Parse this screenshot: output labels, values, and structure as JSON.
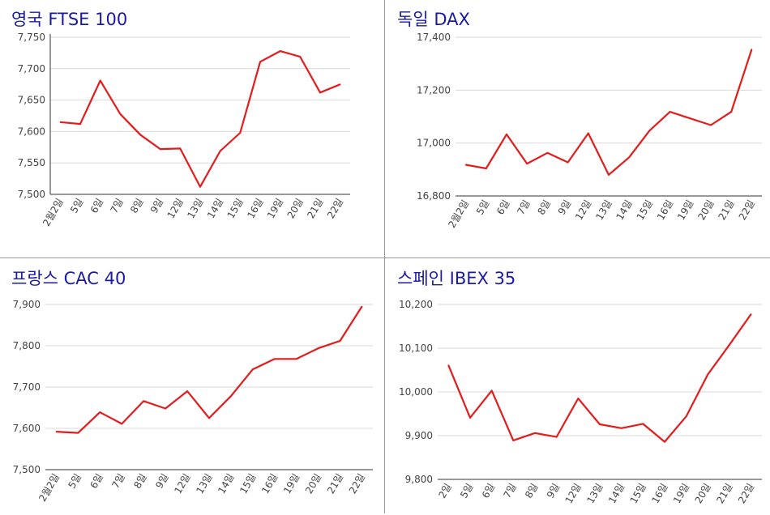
{
  "colors": {
    "line": "#e31c1c",
    "title": "#1a1aa6",
    "grid": "#d9d9d9",
    "axis": "#333333",
    "divider": "#9a9a9a"
  },
  "panels": [
    {
      "title": "영국 FTSE 100",
      "chart_data": {
        "type": "line",
        "categories": [
          "2월2일",
          "5일",
          "6일",
          "7일",
          "8일",
          "9일",
          "12일",
          "13일",
          "14일",
          "15일",
          "16일",
          "19일",
          "20일",
          "21일",
          "22일"
        ],
        "series": [
          {
            "values": [
              7615,
              7612,
              7681,
              7628,
              7595,
              7572,
              7573,
              7512,
              7569,
              7598,
              7711,
              7728,
              7719,
              7662,
              7675
            ]
          }
        ],
        "ylim": [
          7500,
          7750
        ],
        "yticks": [
          7500,
          7550,
          7600,
          7650,
          7700,
          7750
        ],
        "ytick_labels": [
          "7,500",
          "7,550",
          "7,600",
          "7,650",
          "7,700",
          "7,750"
        ],
        "grid": true
      }
    },
    {
      "title": "독일 DAX",
      "chart_data": {
        "type": "line",
        "categories": [
          "2월2일",
          "5일",
          "6일",
          "7일",
          "8일",
          "9일",
          "12일",
          "13일",
          "14일",
          "15일",
          "16일",
          "19일",
          "20일",
          "21일",
          "22일"
        ],
        "series": [
          {
            "values": [
              16918,
              16904,
              17033,
              16922,
              16963,
              16927,
              17037,
              16880,
              16946,
              17047,
              17118,
              17093,
              17068,
              17118,
              17354
            ]
          }
        ],
        "ylim": [
          16800,
          17400
        ],
        "yticks": [
          16800,
          17000,
          17200,
          17400
        ],
        "ytick_labels": [
          "16,800",
          "17,000",
          "17,200",
          "17,400"
        ],
        "grid": true
      }
    },
    {
      "title": "프랑스 CAC 40",
      "chart_data": {
        "type": "line",
        "categories": [
          "2월2일",
          "5일",
          "6일",
          "7일",
          "8일",
          "9일",
          "12일",
          "13일",
          "14일",
          "15일",
          "16일",
          "19일",
          "20일",
          "21일",
          "22일"
        ],
        "series": [
          {
            "values": [
              7592,
              7589,
              7639,
              7611,
              7666,
              7648,
              7690,
              7625,
              7678,
              7743,
              7768,
              7768,
              7794,
              7812,
              7895
            ]
          }
        ],
        "ylim": [
          7500,
          7900
        ],
        "yticks": [
          7500,
          7600,
          7700,
          7800,
          7900
        ],
        "ytick_labels": [
          "7,500",
          "7,600",
          "7,700",
          "7,800",
          "7,900"
        ],
        "grid": true
      }
    },
    {
      "title": "스페인 IBEX 35",
      "chart_data": {
        "type": "line",
        "categories": [
          "2일",
          "5일",
          "6일",
          "7일",
          "8일",
          "9일",
          "12일",
          "13일",
          "14일",
          "15일",
          "16일",
          "19일",
          "20일",
          "21일",
          "22일"
        ],
        "series": [
          {
            "values": [
              10061,
              9941,
              10003,
              9889,
              9906,
              9897,
              9985,
              9926,
              9917,
              9927,
              9886,
              9944,
              10040,
              10108,
              10178
            ]
          }
        ],
        "ylim": [
          9800,
          10200
        ],
        "yticks": [
          9800,
          9900,
          10000,
          10100,
          10200
        ],
        "ytick_labels": [
          "9,800",
          "9,900",
          "10,000",
          "10,100",
          "10,200"
        ],
        "grid": true
      }
    }
  ]
}
